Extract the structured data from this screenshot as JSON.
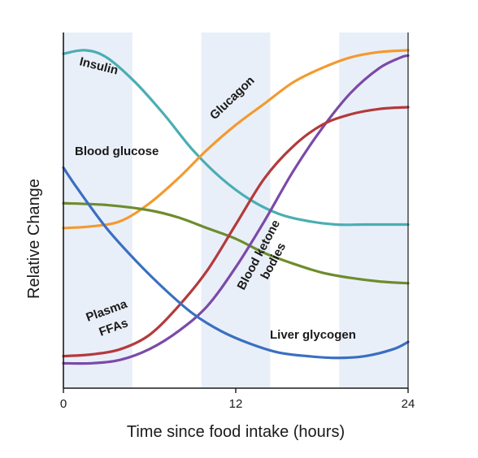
{
  "chart_data": {
    "type": "line",
    "xlabel": "Time since food intake (hours)",
    "ylabel": "Relative Change",
    "xlim": [
      0,
      24
    ],
    "ylim": [
      0,
      100
    ],
    "x_ticks": [
      0,
      12,
      24
    ],
    "x_tick_labels": [
      "0",
      "12",
      "24"
    ],
    "grid": false,
    "background_bands": [
      [
        0,
        4.8
      ],
      [
        9.6,
        14.4
      ],
      [
        19.2,
        24
      ]
    ],
    "band_color": "#e9eff9",
    "series": [
      {
        "name": "Insulin",
        "color": "#4aaeb3",
        "x": [
          0,
          1.5,
          3,
          5,
          7,
          9,
          11,
          13,
          15,
          17,
          19,
          21,
          24
        ],
        "y": [
          94,
          95,
          93,
          86,
          77,
          67,
          59,
          53,
          49,
          47,
          46,
          46,
          46
        ]
      },
      {
        "name": "Glucagon",
        "color": "#f39a2f",
        "x": [
          0,
          2,
          4,
          6,
          8,
          10,
          12,
          14,
          16,
          18,
          20,
          22,
          24
        ],
        "y": [
          45,
          45.5,
          47,
          52,
          59,
          67,
          74,
          80,
          86,
          90,
          93,
          94.5,
          95
        ]
      },
      {
        "name": "Blood glucose",
        "color": "#6e8c2e",
        "x": [
          0,
          3,
          6,
          8,
          10,
          12,
          14,
          16,
          18,
          20,
          22,
          24
        ],
        "y": [
          52,
          51.5,
          50,
          48,
          45,
          42,
          38,
          35,
          32.5,
          31,
          30,
          29.5
        ]
      },
      {
        "name": "Blood ketone bodies",
        "color": "#7b4aa8",
        "x": [
          0,
          2,
          4,
          6,
          8,
          10,
          12,
          14,
          16,
          18,
          20,
          22,
          23.5,
          24
        ],
        "y": [
          7,
          7,
          8,
          11,
          16,
          23,
          34,
          47,
          61,
          73,
          83,
          90,
          93,
          93.5
        ]
      },
      {
        "name": "Plasma FFAs",
        "color": "#b33a3c",
        "x": [
          0,
          2,
          4,
          6,
          8,
          10,
          12,
          14,
          16,
          18,
          20,
          22,
          24
        ],
        "y": [
          9,
          9.5,
          11,
          15,
          23,
          33,
          46,
          59,
          68,
          74,
          77,
          78.5,
          79
        ]
      },
      {
        "name": "Liver glycogen",
        "color": "#3a6fc1",
        "x": [
          0,
          1,
          3,
          5,
          7,
          9,
          11,
          13,
          15,
          17,
          19,
          21,
          23,
          24
        ],
        "y": [
          62,
          56,
          45,
          36,
          28,
          21,
          16,
          12.5,
          10,
          9,
          8.5,
          9,
          11,
          13
        ]
      }
    ],
    "labels": {
      "insulin": "Insulin",
      "glucagon": "Glucagon",
      "blood_glucose": "Blood glucose",
      "ketone_line1": "Blood ketone",
      "ketone_line2": "bodies",
      "ffa_line1": "Plasma",
      "ffa_line2": "FFAs",
      "liver_glycogen": "Liver glycogen"
    }
  }
}
